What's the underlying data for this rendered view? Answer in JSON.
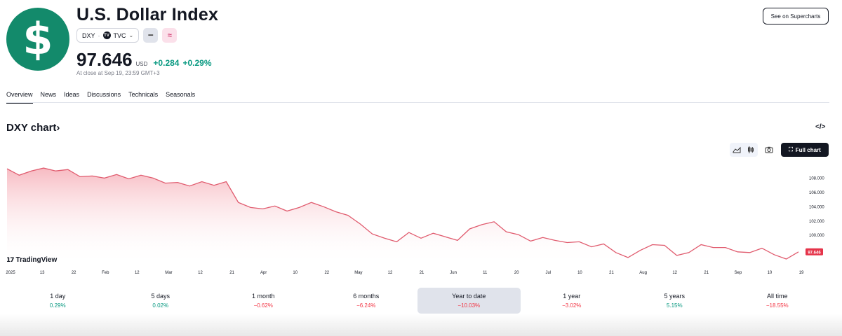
{
  "header": {
    "logo_glyph": "$",
    "title": "U.S. Dollar Index",
    "symbol": "DXY",
    "separator": "·",
    "exchange": "TVC",
    "price": "97.646",
    "currency": "USD",
    "change": "+0.284",
    "change_pct": "+0.29%",
    "close_info": "At close at Sep 19, 23:59 GMT+3",
    "supercharts_button": "See on Supercharts"
  },
  "tabs": [
    "Overview",
    "News",
    "Ideas",
    "Discussions",
    "Technicals",
    "Seasonals"
  ],
  "chart_section": {
    "heading": "DXY chart",
    "embed_glyph": "</>",
    "full_chart_label": "Full chart",
    "watermark": "TradingView"
  },
  "chart_data": {
    "type": "area",
    "y_ticks": [
      "108.000",
      "106.000",
      "104.000",
      "102.000",
      "100.000"
    ],
    "y_range": [
      96.5,
      109.8
    ],
    "last_price_label": "97.646",
    "x_ticks": [
      "2025",
      "13",
      "22",
      "Feb",
      "12",
      "Mar",
      "12",
      "21",
      "Apr",
      "10",
      "22",
      "May",
      "12",
      "21",
      "Jun",
      "11",
      "20",
      "Jul",
      "10",
      "21",
      "Aug",
      "12",
      "21",
      "Sep",
      "10",
      "19"
    ],
    "series": [
      {
        "values": [
          109.2,
          108.3,
          108.9,
          109.3,
          108.9,
          109.1,
          108.1,
          108.2,
          107.9,
          108.4,
          107.8,
          108.3,
          107.9,
          107.2,
          107.3,
          106.8,
          107.4,
          106.9,
          107.4,
          104.5,
          103.8,
          103.6,
          104.0,
          103.3,
          103.8,
          104.5,
          103.9,
          103.2,
          102.7,
          101.5,
          100.1,
          99.5,
          99.0,
          100.3,
          99.5,
          100.2,
          99.7,
          99.2,
          100.8,
          101.4,
          101.8,
          100.4,
          100.0,
          99.1,
          99.6,
          99.2,
          98.9,
          99.0,
          98.3,
          98.7,
          97.5,
          96.8,
          97.8,
          98.6,
          98.5,
          97.1,
          97.5,
          98.6,
          98.2,
          98.2,
          97.6,
          97.5,
          98.1,
          97.2,
          96.6,
          97.6
        ]
      }
    ]
  },
  "periods": [
    {
      "label": "1 day",
      "value": "0.29%",
      "dir": "pos"
    },
    {
      "label": "5 days",
      "value": "0.02%",
      "dir": "pos"
    },
    {
      "label": "1 month",
      "value": "−0.62%",
      "dir": "neg"
    },
    {
      "label": "6 months",
      "value": "−6.24%",
      "dir": "neg"
    },
    {
      "label": "Year to date",
      "value": "−10.03%",
      "dir": "neg",
      "selected": true
    },
    {
      "label": "1 year",
      "value": "−3.02%",
      "dir": "neg"
    },
    {
      "label": "5 years",
      "value": "5.15%",
      "dir": "pos"
    },
    {
      "label": "All time",
      "value": "−18.55%",
      "dir": "neg"
    }
  ],
  "colors": {
    "line": "#e05b6e",
    "fill_top": "#f7b7bf",
    "price_tag": "#e5344a",
    "positive": "#089981",
    "negative": "#f23645",
    "logo": "#138a6b"
  },
  "icons": {
    "line_style": "minus-icon",
    "compare": "approx-icon",
    "area_chart": "area-chart-icon",
    "candles": "candles-icon",
    "screenshot": "camera-icon",
    "fullscreen": "fullscreen-icon"
  }
}
